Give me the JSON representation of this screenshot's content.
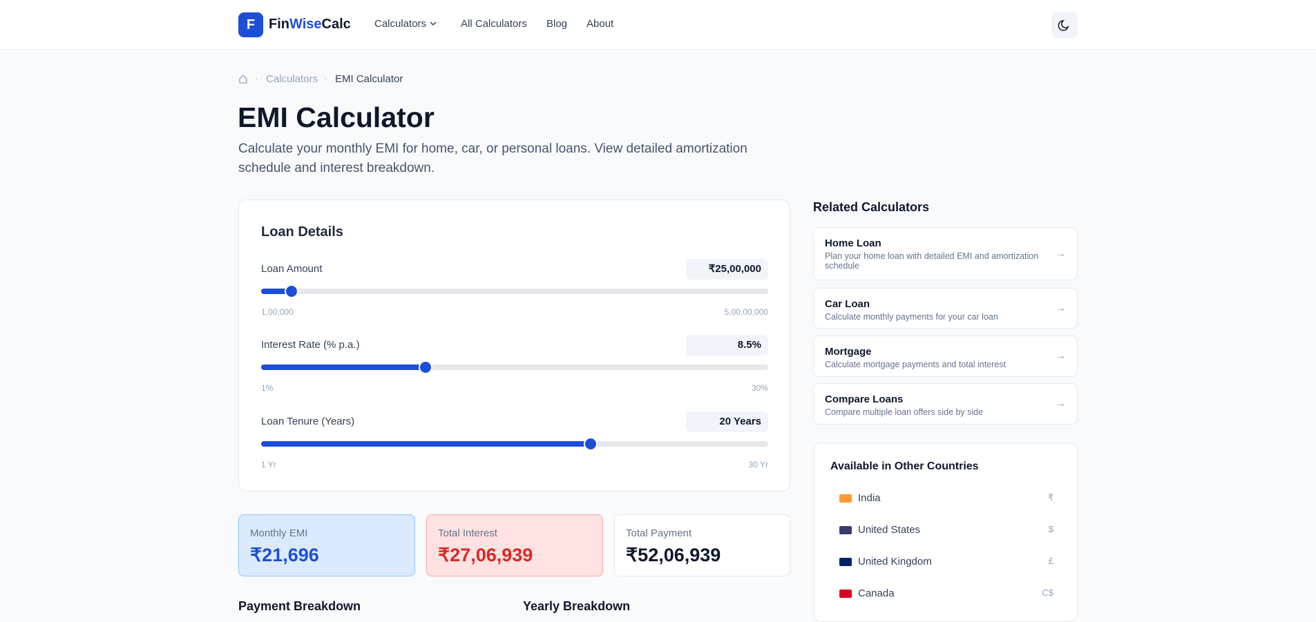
{
  "nav": {
    "logo_letter": "F",
    "brand_a": "Fin",
    "brand_b": "Wise",
    "brand_c": "Calc",
    "links": [
      "Calculators",
      "All Calculators",
      "Blog",
      "About"
    ]
  },
  "breadcrumb": [
    "Calculators",
    "EMI Calculator"
  ],
  "header": {
    "title": "EMI Calculator",
    "subtitle": "Calculate your monthly EMI for home, car, or personal loans. View detailed amortization schedule and interest breakdown."
  },
  "loan_details": {
    "title": "Loan Details",
    "sliders": [
      {
        "label": "Loan Amount",
        "value": "₹25,00,000",
        "min": "1,00,000",
        "max": "5,00,00,000"
      },
      {
        "label": "Interest Rate (% p.a.)",
        "value": "8.5%",
        "min": "1%",
        "max": "30%"
      },
      {
        "label": "Loan Tenure (Years)",
        "value": "20 Years",
        "min": "1 Yr",
        "max": "30 Yr"
      }
    ]
  },
  "results": [
    {
      "label": "Monthly EMI",
      "value": "₹21,696"
    },
    {
      "label": "Total Interest",
      "value": "₹27,06,939"
    },
    {
      "label": "Total Payment",
      "value": "₹52,06,939"
    }
  ],
  "sections": [
    "Payment Breakdown",
    "Yearly Breakdown"
  ],
  "related": {
    "title": "Related Calculators",
    "items": [
      {
        "name": "Home Loan",
        "desc": "Plan your home loan with detailed EMI and amortization schedule"
      },
      {
        "name": "Car Loan",
        "desc": "Calculate monthly payments for your car loan"
      },
      {
        "name": "Mortgage",
        "desc": "Calculate mortgage payments and total interest"
      },
      {
        "name": "Compare Loans",
        "desc": "Compare multiple loan offers side by side"
      }
    ]
  },
  "countries": {
    "title": "Available in Other Countries",
    "items": [
      {
        "name": "India",
        "currency": "₹"
      },
      {
        "name": "United States",
        "currency": "$"
      },
      {
        "name": "United Kingdom",
        "currency": "£"
      },
      {
        "name": "Canada",
        "currency": "C$"
      }
    ]
  }
}
